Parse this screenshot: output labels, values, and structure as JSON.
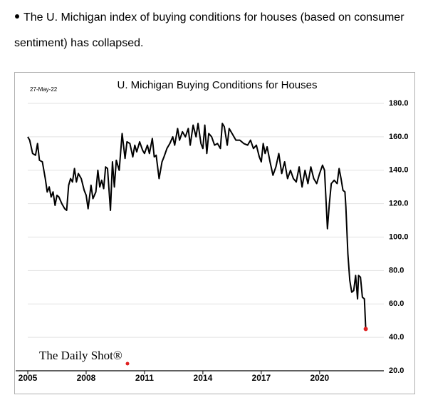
{
  "intro": {
    "line1": "The U. Michigan index of buying conditions for houses (based on consumer",
    "line2": "sentiment) has collapsed."
  },
  "chart_data": {
    "type": "line",
    "title": "U. Michigan Buying Conditions for Houses",
    "date_label": "27-May-22",
    "source": "The Daily Shot®",
    "color": "#000000",
    "end_marker_color": "#e02020",
    "grid": true,
    "xlim": [
      2005,
      2023.3
    ],
    "xticks": [
      2005,
      2008,
      2011,
      2014,
      2017,
      2020
    ],
    "ylim": [
      20,
      180
    ],
    "yticks": [
      {
        "value": 20,
        "label": "20.0"
      },
      {
        "value": 40,
        "label": "40.0"
      },
      {
        "value": 60,
        "label": "60.0"
      },
      {
        "value": 80,
        "label": "80.0"
      },
      {
        "value": 100,
        "label": "100.0"
      },
      {
        "value": 120,
        "label": "120.0"
      },
      {
        "value": 140,
        "label": "140.0"
      },
      {
        "value": 160,
        "label": "160.0"
      },
      {
        "value": 180,
        "label": "180.0"
      }
    ],
    "x": [
      2005.0,
      2005.1,
      2005.25,
      2005.4,
      2005.5,
      2005.6,
      2005.75,
      2005.9,
      2006.0,
      2006.1,
      2006.2,
      2006.3,
      2006.4,
      2006.5,
      2006.6,
      2006.75,
      2006.9,
      2007.0,
      2007.1,
      2007.2,
      2007.3,
      2007.4,
      2007.5,
      2007.6,
      2007.75,
      2007.9,
      2008.0,
      2008.1,
      2008.25,
      2008.35,
      2008.5,
      2008.6,
      2008.7,
      2008.8,
      2008.9,
      2009.0,
      2009.1,
      2009.25,
      2009.35,
      2009.45,
      2009.55,
      2009.7,
      2009.85,
      2010.0,
      2010.1,
      2010.25,
      2010.4,
      2010.5,
      2010.6,
      2010.75,
      2010.9,
      2011.0,
      2011.15,
      2011.25,
      2011.4,
      2011.5,
      2011.6,
      2011.75,
      2011.9,
      2012.0,
      2012.15,
      2012.3,
      2012.45,
      2012.55,
      2012.7,
      2012.8,
      2012.95,
      2013.1,
      2013.25,
      2013.35,
      2013.5,
      2013.65,
      2013.75,
      2013.9,
      2014.0,
      2014.1,
      2014.2,
      2014.3,
      2014.45,
      2014.6,
      2014.75,
      2014.9,
      2015.0,
      2015.1,
      2015.25,
      2015.35,
      2015.5,
      2015.7,
      2015.9,
      2016.1,
      2016.3,
      2016.45,
      2016.6,
      2016.75,
      2016.9,
      2017.0,
      2017.1,
      2017.2,
      2017.3,
      2017.45,
      2017.6,
      2017.75,
      2017.9,
      2018.05,
      2018.2,
      2018.35,
      2018.5,
      2018.65,
      2018.8,
      2018.95,
      2019.1,
      2019.25,
      2019.4,
      2019.55,
      2019.7,
      2019.85,
      2020.0,
      2020.15,
      2020.25,
      2020.4,
      2020.5,
      2020.6,
      2020.75,
      2020.9,
      2021.0,
      2021.1,
      2021.2,
      2021.3,
      2021.35,
      2021.45,
      2021.55,
      2021.65,
      2021.75,
      2021.85,
      2021.95,
      2022.0,
      2022.1,
      2022.2,
      2022.3,
      2022.37
    ],
    "values": [
      160,
      158,
      150,
      149,
      156,
      146,
      145,
      135,
      127,
      130,
      124,
      127,
      119,
      125,
      124,
      120,
      117,
      116,
      131,
      135,
      133,
      141,
      133,
      138,
      135,
      128,
      125,
      117,
      131,
      123,
      127,
      140,
      130,
      134,
      129,
      142,
      141,
      116,
      145,
      130,
      146,
      140,
      162,
      147,
      157,
      156,
      148,
      155,
      151,
      157,
      152,
      150,
      155,
      150,
      159,
      148,
      149,
      135,
      145,
      148,
      153,
      156,
      160,
      155,
      165,
      158,
      163,
      160,
      165,
      155,
      167,
      160,
      168,
      156,
      153,
      167,
      150,
      162,
      160,
      155,
      156,
      153,
      168,
      166,
      155,
      165,
      162,
      158,
      158,
      156,
      155,
      158,
      153,
      155,
      148,
      145,
      156,
      150,
      154,
      145,
      137,
      142,
      150,
      138,
      145,
      135,
      140,
      135,
      133,
      142,
      130,
      140,
      132,
      142,
      135,
      132,
      138,
      143,
      140,
      105,
      120,
      132,
      134,
      132,
      141,
      135,
      128,
      127,
      118,
      90,
      74,
      67,
      68,
      77,
      63,
      77,
      76,
      64,
      63,
      45
    ]
  }
}
